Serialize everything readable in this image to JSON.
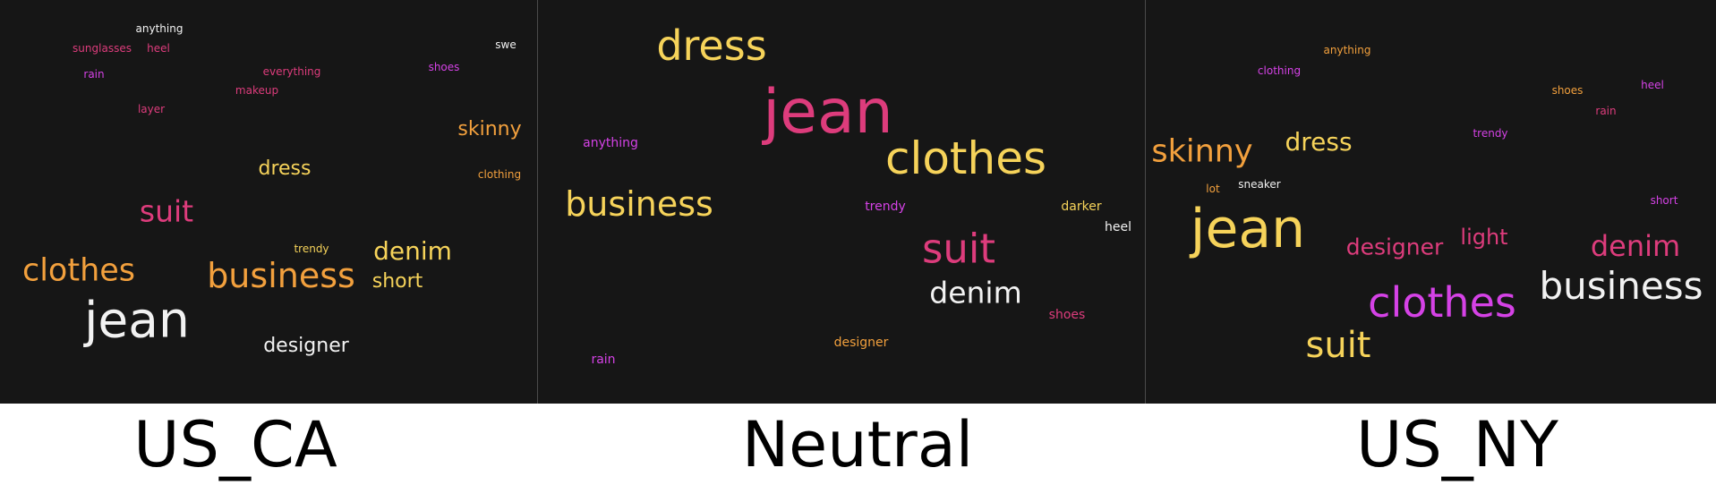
{
  "colors": {
    "background": "#161616",
    "white": "#f2f2f2",
    "yellow": "#f6d35a",
    "orange": "#f2a03d",
    "pink": "#dd3c7c",
    "magenta": "#d542e6"
  },
  "panels": [
    {
      "caption": "US_CA",
      "words": [
        {
          "text": "anything",
          "color": "white"
        },
        {
          "text": "sunglasses",
          "color": "pink"
        },
        {
          "text": "heel",
          "color": "pink"
        },
        {
          "text": "swe",
          "color": "white"
        },
        {
          "text": "rain",
          "color": "magenta"
        },
        {
          "text": "everything",
          "color": "pink"
        },
        {
          "text": "shoes",
          "color": "magenta"
        },
        {
          "text": "makeup",
          "color": "pink"
        },
        {
          "text": "layer",
          "color": "pink"
        },
        {
          "text": "skinny",
          "color": "orange"
        },
        {
          "text": "dress",
          "color": "yellow"
        },
        {
          "text": "clothing",
          "color": "orange"
        },
        {
          "text": "suit",
          "color": "pink"
        },
        {
          "text": "trendy",
          "color": "yellow"
        },
        {
          "text": "denim",
          "color": "yellow"
        },
        {
          "text": "clothes",
          "color": "orange"
        },
        {
          "text": "business",
          "color": "orange"
        },
        {
          "text": "short",
          "color": "yellow"
        },
        {
          "text": "jean",
          "color": "white"
        },
        {
          "text": "designer",
          "color": "white"
        }
      ]
    },
    {
      "caption": "Neutral",
      "words": [
        {
          "text": "dress",
          "color": "yellow"
        },
        {
          "text": "jean",
          "color": "pink"
        },
        {
          "text": "anything",
          "color": "magenta"
        },
        {
          "text": "clothes",
          "color": "yellow"
        },
        {
          "text": "business",
          "color": "yellow"
        },
        {
          "text": "trendy",
          "color": "magenta"
        },
        {
          "text": "darker",
          "color": "yellow"
        },
        {
          "text": "heel",
          "color": "white"
        },
        {
          "text": "suit",
          "color": "pink"
        },
        {
          "text": "denim",
          "color": "white"
        },
        {
          "text": "shoes",
          "color": "pink"
        },
        {
          "text": "designer",
          "color": "orange"
        },
        {
          "text": "rain",
          "color": "magenta"
        }
      ]
    },
    {
      "caption": "US_NY",
      "words": [
        {
          "text": "anything",
          "color": "orange"
        },
        {
          "text": "clothing",
          "color": "magenta"
        },
        {
          "text": "shoes",
          "color": "orange"
        },
        {
          "text": "heel",
          "color": "magenta"
        },
        {
          "text": "rain",
          "color": "pink"
        },
        {
          "text": "trendy",
          "color": "magenta"
        },
        {
          "text": "skinny",
          "color": "orange"
        },
        {
          "text": "dress",
          "color": "yellow"
        },
        {
          "text": "sneaker",
          "color": "white"
        },
        {
          "text": "lot",
          "color": "orange"
        },
        {
          "text": "short",
          "color": "magenta"
        },
        {
          "text": "jean",
          "color": "yellow"
        },
        {
          "text": "designer",
          "color": "pink"
        },
        {
          "text": "light",
          "color": "pink"
        },
        {
          "text": "denim",
          "color": "pink"
        },
        {
          "text": "clothes",
          "color": "magenta"
        },
        {
          "text": "business",
          "color": "white"
        },
        {
          "text": "suit",
          "color": "yellow"
        }
      ]
    }
  ]
}
